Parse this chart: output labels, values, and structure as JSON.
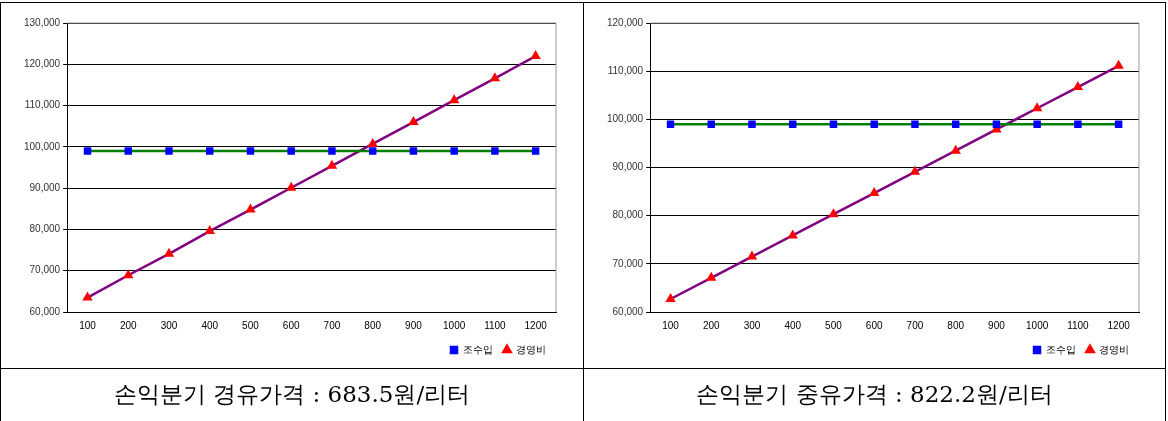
{
  "chart_data": [
    {
      "type": "line",
      "categories": [
        "100",
        "200",
        "300",
        "400",
        "500",
        "600",
        "700",
        "800",
        "900",
        "1000",
        "1100",
        "1200"
      ],
      "series": [
        {
          "name": "조수입",
          "color": "#008000",
          "marker": "square",
          "values": [
            99000,
            99000,
            99000,
            99000,
            99000,
            99000,
            99000,
            99000,
            99000,
            99000,
            99000,
            99000
          ]
        },
        {
          "name": "경영비",
          "color": "#800080",
          "marker": "triangle",
          "values": [
            63500,
            68900,
            74100,
            79600,
            84800,
            90100,
            95400,
            100700,
            106000,
            111300,
            116600,
            122000
          ]
        }
      ],
      "ylim": [
        60000,
        130000
      ],
      "yticks": [
        {
          "value": 60000,
          "label": "60,000"
        },
        {
          "value": 70000,
          "label": "70,000"
        },
        {
          "value": 80000,
          "label": "80,000"
        },
        {
          "value": 90000,
          "label": "90,000"
        },
        {
          "value": 100000,
          "label": "100,000"
        },
        {
          "value": 110000,
          "label": "110,000"
        },
        {
          "value": 120000,
          "label": "120,000"
        },
        {
          "value": 130000,
          "label": "130,000"
        }
      ],
      "grid": "y",
      "legend": "bottom right",
      "line_style": "solid",
      "annotations": [
        "손익분기 경유가격 : 683.5원/리터"
      ]
    },
    {
      "type": "line",
      "categories": [
        "100",
        "200",
        "300",
        "400",
        "500",
        "600",
        "700",
        "800",
        "900",
        "1000",
        "1100",
        "1200"
      ],
      "series": [
        {
          "name": "조수입",
          "color": "#008000",
          "marker": "square",
          "values": [
            99000,
            99000,
            99000,
            99000,
            99000,
            99000,
            99000,
            99000,
            99000,
            99000,
            99000,
            99000
          ]
        },
        {
          "name": "경영비",
          "color": "#800080",
          "marker": "triangle",
          "values": [
            62700,
            67100,
            71500,
            75900,
            80300,
            84700,
            89100,
            93500,
            97900,
            102300,
            106700,
            111100
          ]
        }
      ],
      "ylim": [
        60000,
        120000
      ],
      "yticks": [
        {
          "value": 60000,
          "label": "60,000"
        },
        {
          "value": 70000,
          "label": "70,000"
        },
        {
          "value": 80000,
          "label": "80,000"
        },
        {
          "value": 90000,
          "label": "90,000"
        },
        {
          "value": 100000,
          "label": "100,000"
        },
        {
          "value": 110000,
          "label": "110,000"
        },
        {
          "value": 120000,
          "label": "120,000"
        }
      ],
      "grid": "y",
      "legend": "bottom right",
      "line_style": "solid",
      "annotations": [
        "손익분기 중유가격 : 822.2원/리터"
      ]
    }
  ]
}
